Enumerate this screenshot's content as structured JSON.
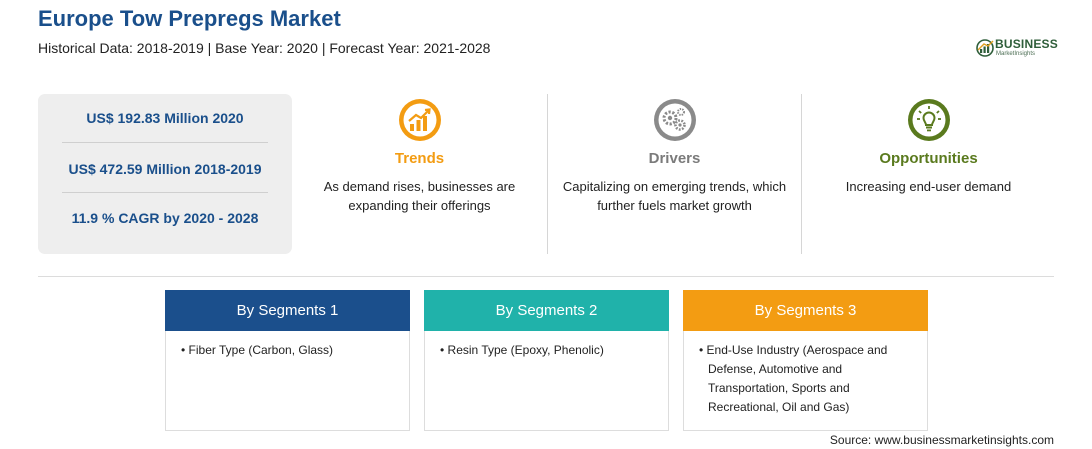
{
  "header": {
    "title": "Europe Tow Prepregs Market",
    "subtitle": "Historical Data: 2018-2019 | Base Year: 2020 | Forecast Year: 2021-2028"
  },
  "logo": {
    "name": "BUSINESS",
    "tagline": "MarketInsights"
  },
  "stats": [
    "US$ 192.83 Million 2020",
    "US$ 472.59 Million 2018-2019",
    "11.9 % CAGR by 2020 - 2028"
  ],
  "factors": [
    {
      "title": "Trends",
      "icon": "chart-growth-icon",
      "color": "#f39c12",
      "text": "As demand rises, businesses are expanding their offerings"
    },
    {
      "title": "Drivers",
      "icon": "gears-icon",
      "color": "#8a8a8a",
      "text": "Capitalizing on emerging trends, which further fuels market growth"
    },
    {
      "title": "Opportunities",
      "icon": "lightbulb-icon",
      "color": "#5a7a1e",
      "text": "Increasing end-user demand"
    }
  ],
  "segments": [
    {
      "title": "By Segments 1",
      "color": "#1b4f8c",
      "items": [
        "• Fiber Type (Carbon, Glass)"
      ]
    },
    {
      "title": "By Segments 2",
      "color": "#20b2aa",
      "items": [
        "• Resin Type (Epoxy, Phenolic)"
      ]
    },
    {
      "title": "By Segments 3",
      "color": "#f39c12",
      "items": [
        "• End-Use Industry (Aerospace and Defense, Automotive and Transportation, Sports and Recreational, Oil and Gas)"
      ]
    }
  ],
  "source": "Source: www.businessmarketinsights.com"
}
